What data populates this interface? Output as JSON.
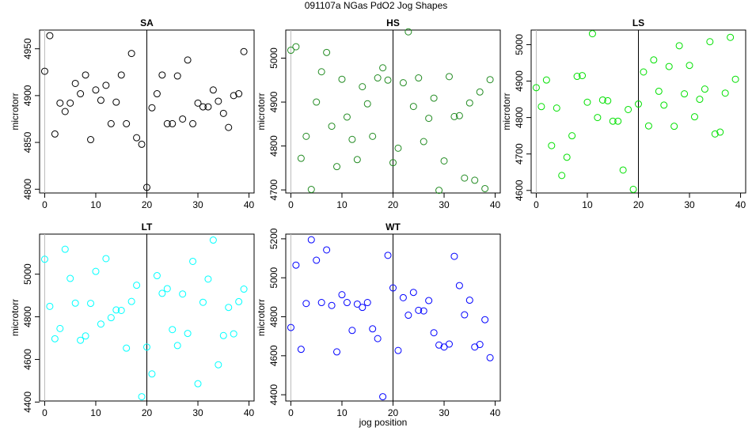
{
  "figure": {
    "title": "091107a   NGas PdO2 Jog Shapes",
    "xlabel": "jog position"
  },
  "chart_data": [
    {
      "type": "scatter",
      "title": "SA",
      "ylabel": "microtorr",
      "color": "#000000",
      "xlim": [
        -1,
        41
      ],
      "ylim": [
        4796,
        4970
      ],
      "xticks": [
        0,
        10,
        20,
        30,
        40
      ],
      "yticks": [
        4800,
        4850,
        4900,
        4950
      ],
      "vline": 20,
      "x": [
        0,
        1,
        2,
        3,
        4,
        5,
        6,
        7,
        8,
        9,
        10,
        11,
        12,
        13,
        14,
        15,
        16,
        17,
        18,
        19,
        20,
        21,
        22,
        23,
        24,
        25,
        26,
        27,
        28,
        29,
        30,
        31,
        32,
        33,
        34,
        35,
        36,
        37,
        38,
        39
      ],
      "y": [
        4926,
        4964,
        4859,
        4892,
        4883,
        4892,
        4913,
        4902,
        4922,
        4853,
        4906,
        4895,
        4911,
        4870,
        4893,
        4922,
        4870,
        4945,
        4855,
        4848,
        4802,
        4887,
        4902,
        4922,
        4870,
        4870,
        4921,
        4875,
        4938,
        4870,
        4892,
        4888,
        4888,
        4906,
        4894,
        4881,
        4866,
        4900,
        4902,
        4947
      ]
    },
    {
      "type": "scatter",
      "title": "HS",
      "ylabel": "microtorr",
      "color": "#228b22",
      "xlim": [
        -1,
        41
      ],
      "ylim": [
        4693,
        5064
      ],
      "xticks": [
        0,
        10,
        20,
        30,
        40
      ],
      "yticks": [
        4700,
        4800,
        4900,
        5000
      ],
      "vline": 20,
      "x": [
        0,
        1,
        2,
        3,
        4,
        5,
        6,
        7,
        8,
        9,
        10,
        11,
        12,
        13,
        14,
        15,
        16,
        17,
        18,
        19,
        20,
        21,
        22,
        23,
        24,
        25,
        26,
        27,
        28,
        29,
        30,
        31,
        32,
        33,
        34,
        35,
        36,
        37,
        38,
        39
      ],
      "y": [
        5018,
        5026,
        4772,
        4822,
        4701,
        4900,
        4969,
        5013,
        4845,
        4753,
        4952,
        4866,
        4815,
        4769,
        4935,
        4896,
        4822,
        4955,
        4978,
        4950,
        4762,
        4795,
        4944,
        5060,
        4890,
        4955,
        4810,
        4863,
        4909,
        4699,
        4766,
        4958,
        4867,
        4869,
        4727,
        4898,
        4722,
        4923,
        4703,
        4951
      ]
    },
    {
      "type": "scatter",
      "title": "LS",
      "ylabel": "microtorr",
      "color": "#00e000",
      "xlim": [
        -1,
        41
      ],
      "ylim": [
        4593,
        5040
      ],
      "xticks": [
        0,
        10,
        20,
        30,
        40
      ],
      "yticks": [
        4600,
        4700,
        4800,
        4900,
        5000
      ],
      "vline": 20,
      "x": [
        0,
        1,
        2,
        3,
        4,
        5,
        6,
        7,
        8,
        9,
        10,
        11,
        12,
        13,
        14,
        15,
        16,
        17,
        18,
        19,
        20,
        21,
        22,
        23,
        24,
        25,
        26,
        27,
        28,
        29,
        30,
        31,
        32,
        33,
        34,
        35,
        36,
        37,
        38,
        39
      ],
      "y": [
        4882,
        4830,
        4903,
        4723,
        4826,
        4641,
        4691,
        4750,
        4913,
        4915,
        4842,
        5030,
        4800,
        4848,
        4846,
        4790,
        4790,
        4656,
        4822,
        4603,
        4837,
        4925,
        4777,
        4958,
        4872,
        4834,
        4940,
        4776,
        4997,
        4865,
        4943,
        4802,
        4850,
        4878,
        5008,
        4755,
        4760,
        4867,
        5020,
        4905
      ]
    },
    {
      "type": "scatter",
      "title": "LT",
      "ylabel": "microtorr",
      "color": "#00ffff",
      "xlim": [
        -1,
        41
      ],
      "ylim": [
        4405,
        5188
      ],
      "xticks": [
        0,
        10,
        20,
        30,
        40
      ],
      "yticks": [
        4400,
        4600,
        4800,
        5000
      ],
      "vline": 20,
      "x": [
        0,
        1,
        2,
        3,
        4,
        5,
        6,
        7,
        8,
        9,
        10,
        11,
        12,
        13,
        14,
        15,
        16,
        17,
        18,
        19,
        20,
        21,
        22,
        23,
        24,
        25,
        26,
        27,
        28,
        29,
        30,
        31,
        32,
        33,
        34,
        35,
        36,
        37,
        38,
        39
      ],
      "y": [
        5070,
        4849,
        4697,
        4745,
        5117,
        4980,
        4864,
        4690,
        4710,
        4863,
        5013,
        4766,
        5073,
        4796,
        4832,
        4830,
        4653,
        4872,
        4948,
        4425,
        4658,
        4532,
        4993,
        4910,
        4932,
        4740,
        4665,
        4907,
        4722,
        5060,
        4486,
        4868,
        4977,
        5160,
        4575,
        4712,
        4844,
        4720,
        4871,
        4930
      ]
    },
    {
      "type": "scatter",
      "title": "WT",
      "ylabel": "microtorr",
      "color": "#0000ff",
      "xlim": [
        -1,
        41
      ],
      "ylim": [
        4368,
        5224
      ],
      "xticks": [
        0,
        10,
        20,
        30,
        40
      ],
      "yticks": [
        4400,
        4600,
        4800,
        5000,
        5200
      ],
      "vline": 20,
      "x": [
        0,
        1,
        2,
        3,
        4,
        5,
        6,
        7,
        8,
        9,
        10,
        11,
        12,
        13,
        14,
        15,
        16,
        17,
        18,
        19,
        20,
        21,
        22,
        23,
        24,
        25,
        26,
        27,
        28,
        29,
        30,
        31,
        32,
        33,
        34,
        35,
        36,
        37,
        38,
        39
      ],
      "y": [
        4745,
        5065,
        4633,
        4868,
        5195,
        5090,
        4873,
        5143,
        4858,
        4620,
        4913,
        4873,
        4730,
        4865,
        4848,
        4873,
        4738,
        4688,
        4390,
        5115,
        4948,
        4627,
        4898,
        4808,
        4925,
        4833,
        4830,
        4883,
        4718,
        4655,
        4645,
        4660,
        5110,
        4960,
        4810,
        4885,
        4645,
        4658,
        4785,
        4590
      ]
    }
  ]
}
